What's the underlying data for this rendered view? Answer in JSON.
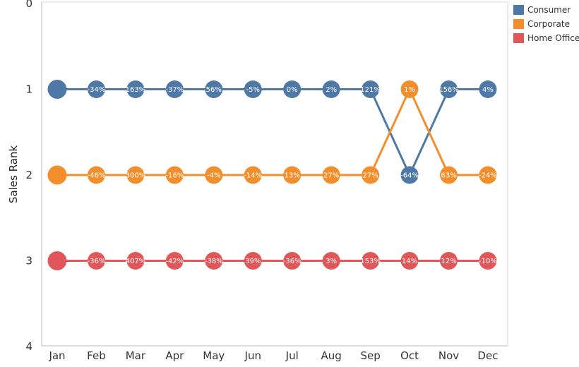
{
  "chart_data": {
    "type": "line",
    "title": "",
    "xlabel": "",
    "ylabel": "Sales Rank",
    "categories": [
      "Jan",
      "Feb",
      "Mar",
      "Apr",
      "May",
      "Jun",
      "Jul",
      "Aug",
      "Sep",
      "Oct",
      "Nov",
      "Dec"
    ],
    "y_ticks": [
      "0",
      "1",
      "2",
      "3",
      "4"
    ],
    "ylim": [
      0,
      4
    ],
    "y_inverted": true,
    "legend_position": "top-right",
    "grid": false,
    "series": [
      {
        "name": "Consumer",
        "color": "#4e79a7",
        "values": [
          1,
          1,
          1,
          1,
          1,
          1,
          1,
          1,
          1,
          2,
          1,
          1
        ],
        "labels": [
          "",
          "-34%",
          "163%",
          "-37%",
          "56%",
          "-5%",
          "0%",
          "2%",
          "121%",
          "-64%",
          "156%",
          "4%"
        ]
      },
      {
        "name": "Corporate",
        "color": "#f28e2b",
        "values": [
          2,
          2,
          2,
          2,
          2,
          2,
          2,
          2,
          2,
          1,
          2,
          2
        ],
        "labels": [
          "",
          "-46%",
          "300%",
          "-16%",
          "-4%",
          "-14%",
          "13%",
          "27%",
          "27%",
          "1%",
          "63%",
          "-24%"
        ]
      },
      {
        "name": "Home Office",
        "color": "#e15759",
        "values": [
          3,
          3,
          3,
          3,
          3,
          3,
          3,
          3,
          3,
          3,
          3,
          3
        ],
        "labels": [
          "",
          "-36%",
          "407%",
          "-42%",
          "-38%",
          "39%",
          "-36%",
          "3%",
          "153%",
          "14%",
          "12%",
          "-10%"
        ]
      }
    ]
  }
}
